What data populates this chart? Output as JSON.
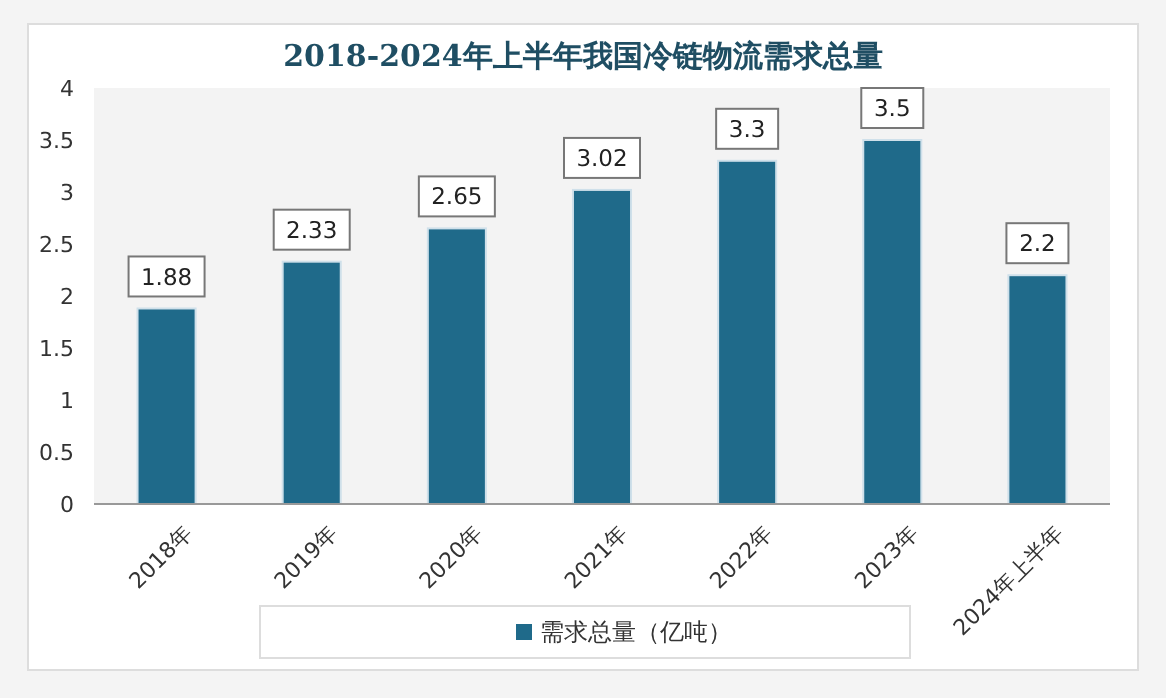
{
  "chart_data": {
    "type": "bar",
    "title": "2018-2024年上半年我国冷链物流需求总量",
    "categories": [
      "2018年",
      "2019年",
      "2020年",
      "2021年",
      "2022年",
      "2023年",
      "2024年上半年"
    ],
    "series": [
      {
        "name": "需求总量（亿吨）",
        "color": "#1f6a8a",
        "values": [
          1.88,
          2.33,
          2.65,
          3.02,
          3.3,
          3.5,
          2.2
        ]
      }
    ],
    "ylim": [
      0,
      4
    ],
    "yticks": [
      0,
      0.5,
      1,
      1.5,
      2,
      2.5,
      3,
      3.5,
      4
    ],
    "data_labels": true,
    "legend": "bottom",
    "grid": false
  }
}
